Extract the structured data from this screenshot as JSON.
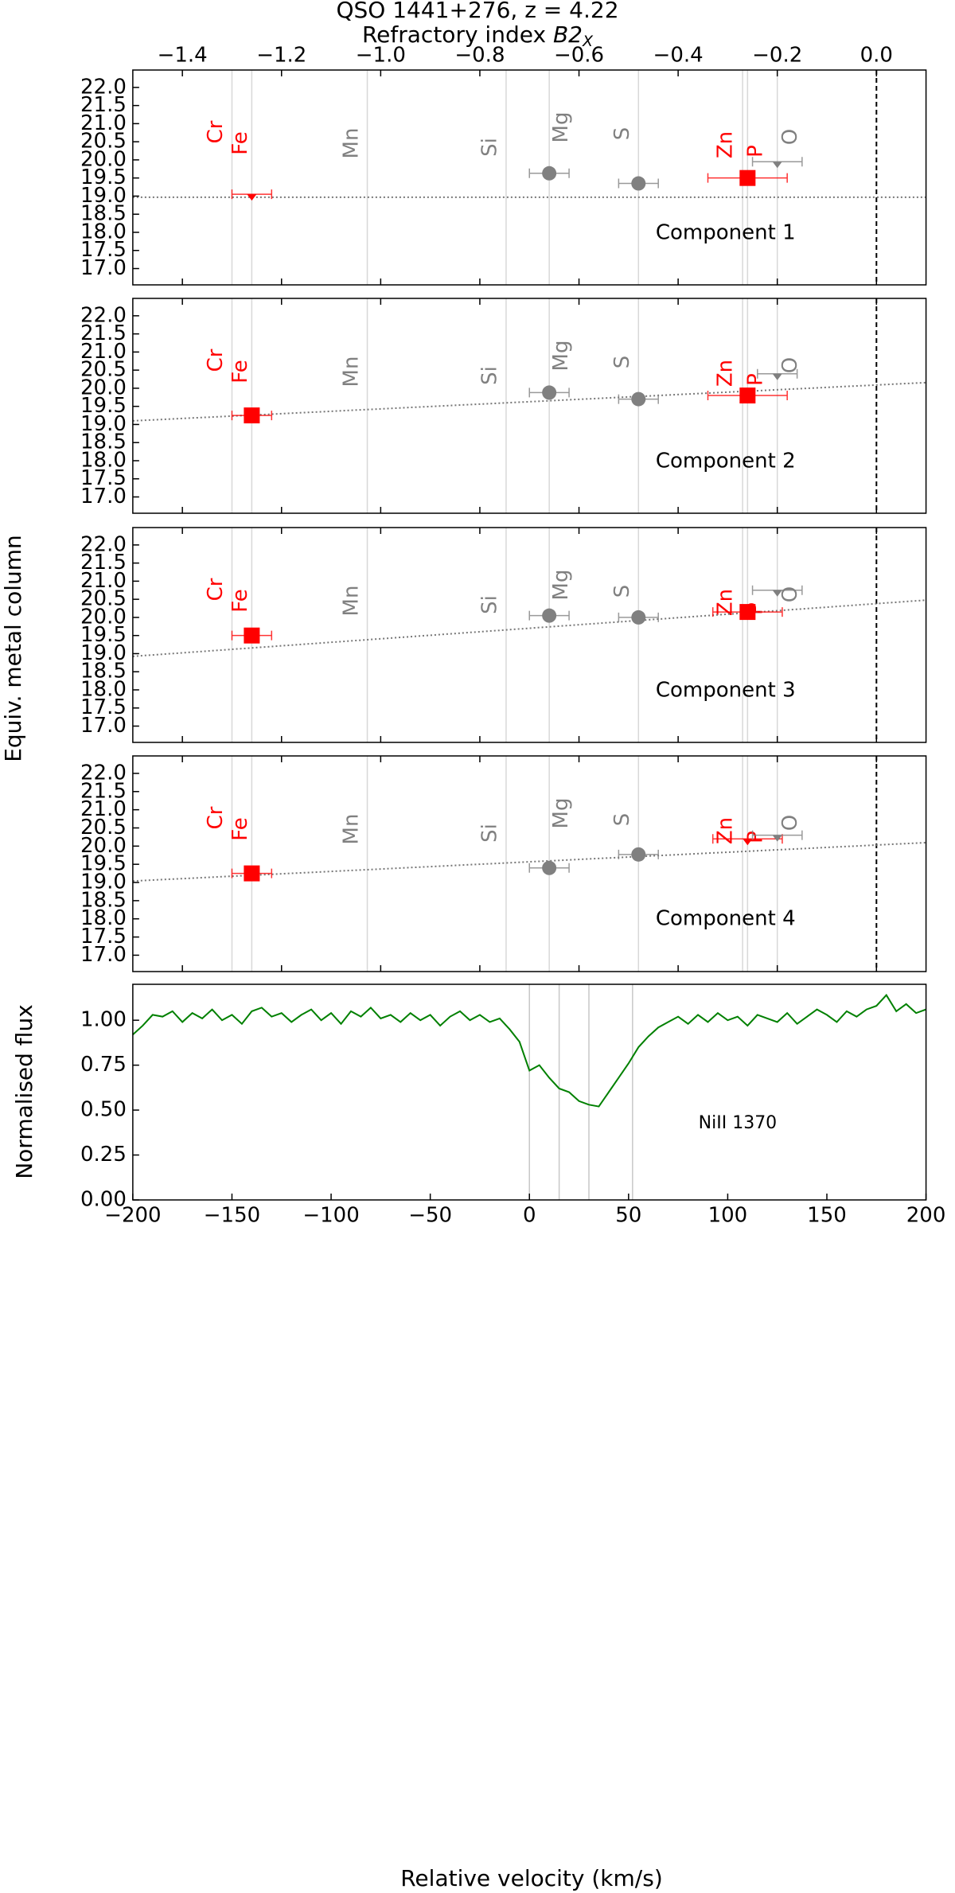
{
  "chart_data": [
    {
      "type": "scatter",
      "title": "QSO 1441+276, z = 4.22",
      "x_label": {
        "text": "Refractory index",
        "symbol": "B2",
        "sub": "X"
      },
      "y_label": "Equiv. metal column",
      "xlim": [
        -1.5,
        0.1
      ],
      "xticks": [
        {
          "value": -1.4,
          "label": "−1.4"
        },
        {
          "value": -1.2,
          "label": "−1.2"
        },
        {
          "value": -1.0,
          "label": "−1.0"
        },
        {
          "value": -0.8,
          "label": "−0.8"
        },
        {
          "value": -0.6,
          "label": "−0.6"
        },
        {
          "value": -0.4,
          "label": "−0.4"
        },
        {
          "value": -0.2,
          "label": "−0.2"
        },
        {
          "value": 0,
          "label": "0.0"
        }
      ],
      "ylim": [
        16.55,
        22.48
      ],
      "yticks": [
        {
          "value": 17,
          "label": "17.0"
        },
        17.5,
        {
          "value": 18,
          "label": "18.0"
        },
        18.5,
        {
          "value": 19,
          "label": "19.0"
        },
        19.5,
        {
          "value": 20,
          "label": "20.0"
        },
        20.5,
        {
          "value": 21,
          "label": "21.0"
        },
        21.5,
        {
          "value": 22,
          "label": "22.0"
        }
      ],
      "reference_x": 0,
      "elements": [
        {
          "label": "Cr",
          "x": -1.3,
          "color": "#ff0000"
        },
        {
          "label": "Fe",
          "x": -1.26,
          "color": "#ff0000"
        },
        {
          "label": "Mn",
          "x": -1.027,
          "color": "#808080"
        },
        {
          "label": "Si",
          "x": -0.747,
          "color": "#808080"
        },
        {
          "label": "Mg",
          "x": -0.66,
          "color": "#808080"
        },
        {
          "label": "S",
          "x": -0.48,
          "color": "#808080"
        },
        {
          "label": "Zn",
          "x": -0.27,
          "color": "#ff0000"
        },
        {
          "label": "P",
          "x": -0.26,
          "color": "#ff0000"
        },
        {
          "label": "O",
          "x": -0.2,
          "color": "#808080"
        }
      ],
      "label": "Component 1",
      "fit": {
        "slope": 0,
        "intercept": 18.97
      },
      "points": [
        {
          "x": -1.26,
          "y": 19.05,
          "xerr": 0.04,
          "marker": "square",
          "color": "#ff0000",
          "upper_limit": true
        },
        {
          "x": -0.66,
          "y": 19.63,
          "xerr": 0.04,
          "marker": "circle",
          "color": "#808080",
          "upper_limit": false
        },
        {
          "x": -0.48,
          "y": 19.35,
          "xerr": 0.04,
          "marker": "circle",
          "color": "#808080",
          "upper_limit": false
        },
        {
          "x": -0.26,
          "y": 19.5,
          "xerr": 0.08,
          "marker": "square",
          "color": "#ff0000",
          "upper_limit": false
        },
        {
          "x": -0.2,
          "y": 19.95,
          "xerr": 0.05,
          "marker": "circle",
          "color": "#808080",
          "upper_limit": true
        }
      ]
    },
    {
      "type": "scatter",
      "label": "Component 2",
      "fit": {
        "slope": 0.66,
        "intercept": 20.09
      },
      "points": [
        {
          "x": -1.26,
          "y": 19.25,
          "xerr": 0.04,
          "marker": "square",
          "color": "#ff0000",
          "upper_limit": false
        },
        {
          "x": -0.66,
          "y": 19.88,
          "xerr": 0.04,
          "marker": "circle",
          "color": "#808080",
          "upper_limit": false
        },
        {
          "x": -0.48,
          "y": 19.7,
          "xerr": 0.04,
          "marker": "circle",
          "color": "#808080",
          "upper_limit": false
        },
        {
          "x": -0.26,
          "y": 19.8,
          "xerr": 0.08,
          "marker": "square",
          "color": "#ff0000",
          "upper_limit": false
        },
        {
          "x": -0.2,
          "y": 20.4,
          "xerr": 0.04,
          "marker": "circle",
          "color": "#808080",
          "upper_limit": true
        }
      ]
    },
    {
      "type": "scatter",
      "label": "Component 3",
      "fit": {
        "slope": 0.97,
        "intercept": 20.38
      },
      "points": [
        {
          "x": -1.26,
          "y": 19.5,
          "xerr": 0.04,
          "marker": "square",
          "color": "#ff0000",
          "upper_limit": false
        },
        {
          "x": -0.66,
          "y": 20.05,
          "xerr": 0.04,
          "marker": "circle",
          "color": "#808080",
          "upper_limit": false
        },
        {
          "x": -0.48,
          "y": 20.0,
          "xerr": 0.04,
          "marker": "circle",
          "color": "#808080",
          "upper_limit": false
        },
        {
          "x": -0.26,
          "y": 20.15,
          "xerr": 0.07,
          "marker": "square",
          "color": "#ff0000",
          "upper_limit": false
        },
        {
          "x": -0.2,
          "y": 20.75,
          "xerr": 0.05,
          "marker": "circle",
          "color": "#808080",
          "upper_limit": true
        }
      ]
    },
    {
      "type": "scatter",
      "label": "Component 4",
      "fit": {
        "slope": 0.66,
        "intercept": 20.03
      },
      "points": [
        {
          "x": -1.26,
          "y": 19.25,
          "xerr": 0.04,
          "marker": "square",
          "color": "#ff0000",
          "upper_limit": false
        },
        {
          "x": -0.66,
          "y": 19.4,
          "xerr": 0.04,
          "marker": "circle",
          "color": "#808080",
          "upper_limit": false
        },
        {
          "x": -0.48,
          "y": 19.77,
          "xerr": 0.04,
          "marker": "circle",
          "color": "#808080",
          "upper_limit": false
        },
        {
          "x": -0.26,
          "y": 20.2,
          "xerr": 0.07,
          "marker": "square",
          "color": "#ff0000",
          "upper_limit": true
        },
        {
          "x": -0.2,
          "y": 20.3,
          "xerr": 0.05,
          "marker": "circle",
          "color": "#808080",
          "upper_limit": true
        }
      ]
    },
    {
      "type": "line",
      "label": "NiII 1370",
      "x_label": "Relative velocity (km/s)",
      "y_label": "Normalised flux",
      "xlim": [
        -200,
        200
      ],
      "xticks": [
        {
          "value": -200,
          "label": "−200"
        },
        {
          "value": -150,
          "label": "−150"
        },
        {
          "value": -100,
          "label": "−100"
        },
        {
          "value": -50,
          "label": "−50"
        },
        0,
        50,
        100,
        150,
        200
      ],
      "ylim": [
        0,
        1.2
      ],
      "yticks": [
        {
          "value": 0,
          "label": "0.00"
        },
        0.25,
        {
          "value": 0.5,
          "label": "0.50"
        },
        0.75,
        {
          "value": 1,
          "label": "1.00"
        }
      ],
      "components": [
        0,
        15,
        30,
        52
      ],
      "color": "#008000",
      "x": [
        -200,
        -195,
        -190,
        -185,
        -180,
        -175,
        -170,
        -165,
        -160,
        -155,
        -150,
        -145,
        -140,
        -135,
        -130,
        -125,
        -120,
        -115,
        -110,
        -105,
        -100,
        -95,
        -90,
        -85,
        -80,
        -75,
        -70,
        -65,
        -60,
        -55,
        -50,
        -45,
        -40,
        -35,
        -30,
        -25,
        -20,
        -15,
        -10,
        -5,
        0,
        5,
        10,
        15,
        20,
        25,
        30,
        35,
        40,
        45,
        50,
        55,
        60,
        65,
        70,
        75,
        80,
        85,
        90,
        95,
        100,
        105,
        110,
        115,
        120,
        125,
        130,
        135,
        140,
        145,
        150,
        155,
        160,
        165,
        170,
        175,
        180,
        185,
        190,
        195,
        200
      ],
      "values": [
        0.92,
        0.97,
        1.03,
        1.02,
        1.05,
        0.99,
        1.04,
        1.01,
        1.06,
        1.0,
        1.03,
        0.98,
        1.05,
        1.07,
        1.02,
        1.04,
        0.99,
        1.03,
        1.06,
        1.0,
        1.04,
        0.98,
        1.05,
        1.02,
        1.07,
        1.01,
        1.03,
        0.99,
        1.04,
        1.0,
        1.03,
        0.97,
        1.02,
        1.05,
        1.0,
        1.03,
        0.99,
        1.01,
        0.95,
        0.88,
        0.72,
        0.75,
        0.68,
        0.62,
        0.6,
        0.55,
        0.53,
        0.52,
        0.6,
        0.68,
        0.76,
        0.85,
        0.91,
        0.96,
        0.99,
        1.02,
        0.98,
        1.03,
        0.99,
        1.04,
        1.0,
        1.02,
        0.97,
        1.03,
        1.01,
        0.99,
        1.04,
        0.98,
        1.02,
        1.06,
        1.03,
        0.99,
        1.05,
        1.02,
        1.06,
        1.08,
        1.14,
        1.05,
        1.09,
        1.04,
        1.06
      ]
    }
  ]
}
